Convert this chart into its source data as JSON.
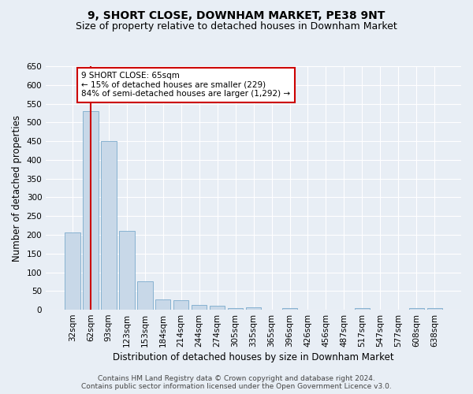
{
  "title": "9, SHORT CLOSE, DOWNHAM MARKET, PE38 9NT",
  "subtitle": "Size of property relative to detached houses in Downham Market",
  "xlabel": "Distribution of detached houses by size in Downham Market",
  "ylabel": "Number of detached properties",
  "categories": [
    "32sqm",
    "62sqm",
    "93sqm",
    "123sqm",
    "153sqm",
    "184sqm",
    "214sqm",
    "244sqm",
    "274sqm",
    "305sqm",
    "335sqm",
    "365sqm",
    "396sqm",
    "426sqm",
    "456sqm",
    "487sqm",
    "517sqm",
    "547sqm",
    "577sqm",
    "608sqm",
    "638sqm"
  ],
  "values": [
    207,
    530,
    450,
    210,
    75,
    27,
    25,
    13,
    10,
    4,
    7,
    0,
    5,
    0,
    0,
    0,
    4,
    0,
    0,
    5,
    5
  ],
  "bar_color": "#c8d8e8",
  "bar_edge_color": "#7aaacc",
  "vline_x": 1,
  "vline_color": "#cc0000",
  "annotation_line1": "9 SHORT CLOSE: 65sqm",
  "annotation_line2": "← 15% of detached houses are smaller (229)",
  "annotation_line3": "84% of semi-detached houses are larger (1,292) →",
  "annotation_box_color": "#ffffff",
  "annotation_box_edge_color": "#cc0000",
  "ylim": [
    0,
    650
  ],
  "yticks": [
    0,
    50,
    100,
    150,
    200,
    250,
    300,
    350,
    400,
    450,
    500,
    550,
    600,
    650
  ],
  "footer_line1": "Contains HM Land Registry data © Crown copyright and database right 2024.",
  "footer_line2": "Contains public sector information licensed under the Open Government Licence v3.0.",
  "bg_color": "#e8eef5",
  "plot_bg_color": "#e8eef5",
  "grid_color": "#ffffff",
  "title_fontsize": 10,
  "subtitle_fontsize": 9,
  "axis_label_fontsize": 8.5,
  "tick_fontsize": 7.5,
  "annotation_fontsize": 7.5,
  "footer_fontsize": 6.5
}
